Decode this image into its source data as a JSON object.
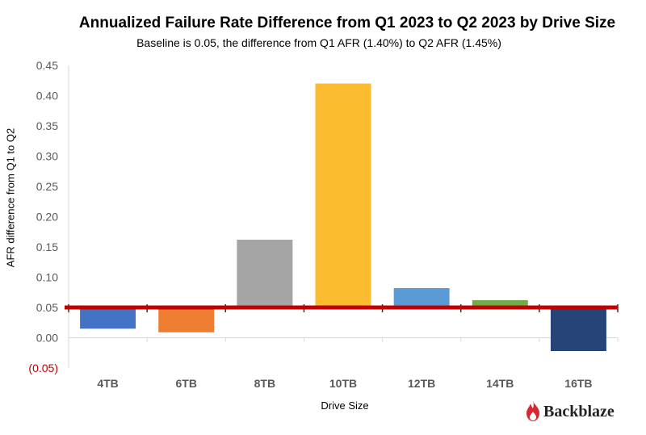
{
  "chart_data": {
    "type": "bar",
    "title": "Annualized Failure Rate Difference from Q1 2023 to Q2 2023 by Drive Size",
    "subtitle": "Baseline is 0.05, the difference from Q1 AFR (1.40%) to Q2 AFR (1.45%)",
    "xlabel": "Drive Size",
    "ylabel": "AFR difference from Q1 to Q2",
    "categories": [
      "4TB",
      "6TB",
      "8TB",
      "10TB",
      "12TB",
      "14TB",
      "16TB"
    ],
    "values": [
      0.015,
      0.009,
      0.162,
      0.42,
      0.082,
      0.062,
      -0.022
    ],
    "baseline": 0.05,
    "ylim": [
      -0.05,
      0.45
    ],
    "y_ticks": [
      {
        "value": 0.45,
        "label": "0.45"
      },
      {
        "value": 0.4,
        "label": "0.40"
      },
      {
        "value": 0.35,
        "label": "0.35"
      },
      {
        "value": 0.3,
        "label": "0.30"
      },
      {
        "value": 0.25,
        "label": "0.25"
      },
      {
        "value": 0.2,
        "label": "0.20"
      },
      {
        "value": 0.15,
        "label": "0.15"
      },
      {
        "value": 0.1,
        "label": "0.10"
      },
      {
        "value": 0.05,
        "label": "0.05"
      },
      {
        "value": 0.0,
        "label": "0.00"
      },
      {
        "value": -0.05,
        "label": "(0.05)"
      }
    ],
    "colors": [
      "#4472C4",
      "#ED7D31",
      "#A5A5A5",
      "#FBBC2F",
      "#5B9BD5",
      "#70AD47",
      "#264478"
    ],
    "baseline_color": "#C00000",
    "negative_label_color": "#C00000",
    "grid": false
  },
  "branding": {
    "name": "Backblaze",
    "icon": "flame-icon",
    "icon_color": "#D7282F"
  }
}
